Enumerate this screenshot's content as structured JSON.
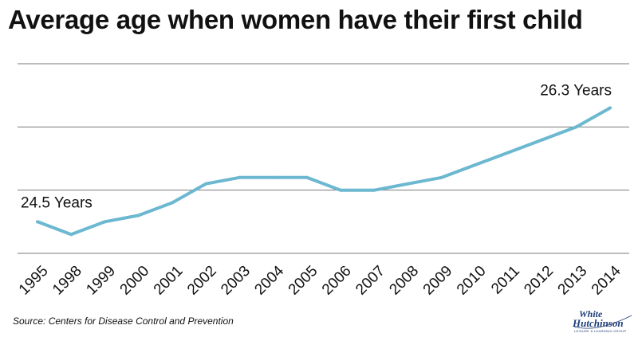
{
  "chart_data": {
    "type": "line",
    "title": "Average age when women have their first child",
    "xlabel": "",
    "ylabel": "",
    "categories": [
      "1995",
      "1998",
      "1999",
      "2000",
      "2001",
      "2002",
      "2003",
      "2004",
      "2005",
      "2006",
      "2007",
      "2008",
      "2009",
      "2010",
      "2011",
      "2012",
      "2013",
      "2014"
    ],
    "series": [
      {
        "values": [
          24.5,
          24.3,
          24.5,
          24.6,
          24.8,
          25.1,
          25.2,
          25.2,
          25.2,
          25.0,
          25.0,
          25.1,
          25.2,
          25.4,
          25.6,
          25.8,
          26.0,
          26.3
        ]
      }
    ],
    "ylim": [
      24.0,
      27.0
    ],
    "grid": true,
    "annotations": [
      {
        "label": "24.5 Years",
        "index": 0
      },
      {
        "label": "26.3 Years",
        "index": 17
      }
    ],
    "line_color": "#6bb8d0",
    "grid_color": "#7a7a7a"
  },
  "footer": {
    "source": "Source: Centers for Disease Control and Prevention",
    "logo_line1": "White",
    "logo_line2": "Hutchinson",
    "logo_line3": "LEISURE & LEARNING GROUP"
  }
}
